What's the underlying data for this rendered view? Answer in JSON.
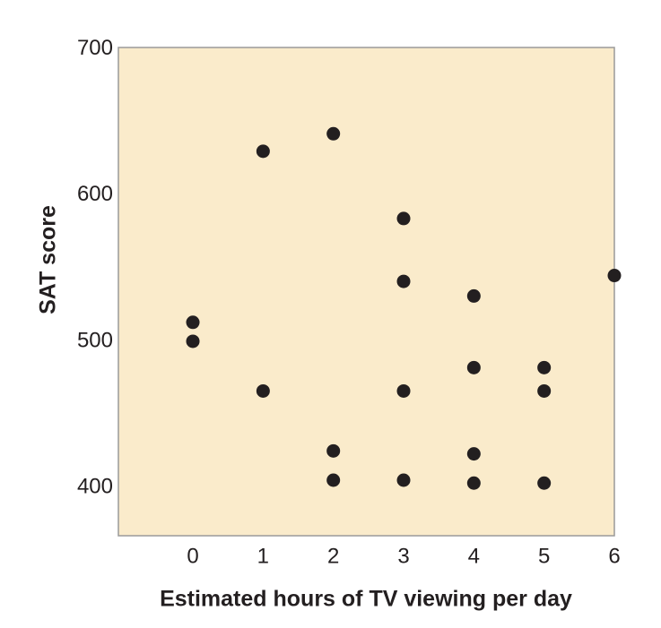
{
  "chart_data": {
    "type": "scatter",
    "x_label": "Estimated hours of TV viewing per day",
    "y_label": "SAT score",
    "series": [
      {
        "color": "#231f20",
        "x": [
          0,
          0,
          1,
          1,
          2,
          2,
          2,
          3,
          3,
          3,
          3,
          4,
          4,
          4,
          4,
          5,
          5,
          5,
          6
        ],
        "values": [
          513,
          500,
          630,
          466,
          642,
          425,
          405,
          584,
          541,
          466,
          405,
          531,
          482,
          423,
          403,
          482,
          466,
          403,
          545
        ]
      }
    ],
    "xlim": [
      -1.06,
      6
    ],
    "xticks": [
      0,
      1,
      2,
      3,
      4,
      5,
      6
    ],
    "ylim": [
      367,
      701
    ],
    "yticks": [
      400,
      500,
      600,
      700
    ],
    "background": "#faebcb",
    "grid": false
  }
}
